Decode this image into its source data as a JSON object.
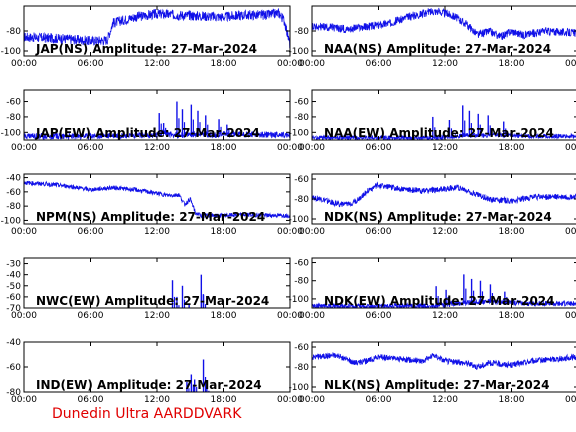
{
  "footer": "Dunedin Ultra AARDDVARK",
  "colors": {
    "trace": "#1010e8",
    "axis": "#000000",
    "footer": "#e00000"
  },
  "x_ticks": [
    "00:00",
    "06:00",
    "12:00",
    "18:00",
    "00:00"
  ],
  "chart_data": [
    {
      "type": "line",
      "title": "JAP(NS) Amplitude: 27-Mar-2024",
      "xlim": [
        0,
        24
      ],
      "ylim": [
        -105,
        -55
      ],
      "yticks": [
        "-80",
        "-100"
      ],
      "ytick_values": [
        -80,
        -100
      ],
      "x": [
        0,
        2,
        4,
        6,
        7.5,
        8,
        10,
        12,
        14,
        16,
        18,
        20,
        22,
        23,
        23.5,
        24
      ],
      "y": [
        -86,
        -87,
        -88,
        -90,
        -89,
        -72,
        -66,
        -63,
        -64,
        -65,
        -66,
        -64,
        -64,
        -62,
        -70,
        -94
      ],
      "noise": 5
    },
    {
      "type": "line",
      "title": "NAA(NS) Amplitude: 27-Mar-2024",
      "xlim": [
        0,
        24
      ],
      "ylim": [
        -105,
        -55
      ],
      "yticks": [
        "-80",
        "-100"
      ],
      "ytick_values": [
        -80,
        -100
      ],
      "x": [
        0,
        3,
        5,
        7,
        9,
        11,
        12,
        13,
        14,
        15,
        16,
        17,
        18,
        19,
        21,
        24
      ],
      "y": [
        -75,
        -78,
        -76,
        -72,
        -65,
        -60,
        -62,
        -66,
        -74,
        -84,
        -80,
        -86,
        -80,
        -84,
        -80,
        -82
      ],
      "noise": 4
    },
    {
      "type": "line",
      "title": "JAP(EW) Amplitude: 27-Mar-2024",
      "xlim": [
        0,
        24
      ],
      "ylim": [
        -110,
        -45
      ],
      "yticks": [
        "-60",
        "-80",
        "-100"
      ],
      "ytick_values": [
        -60,
        -80,
        -100
      ],
      "x": [
        0,
        6,
        10,
        12,
        12.5,
        13,
        14,
        15,
        16,
        17,
        18,
        20,
        24
      ],
      "y": [
        -105,
        -105,
        -104,
        -104,
        -100,
        -102,
        -104,
        -103,
        -101,
        -104,
        -102,
        -103,
        -103
      ],
      "noise": 4,
      "spikes": [
        [
          12.2,
          -75
        ],
        [
          12.6,
          -88
        ],
        [
          13.8,
          -60
        ],
        [
          14.3,
          -70
        ],
        [
          15.1,
          -64
        ],
        [
          15.7,
          -72
        ],
        [
          16.4,
          -78
        ],
        [
          17.6,
          -83
        ],
        [
          18.3,
          -90
        ]
      ]
    },
    {
      "type": "line",
      "title": "NAA(EW) Amplitude: 27-Mar-2024",
      "xlim": [
        0,
        24
      ],
      "ylim": [
        -110,
        -45
      ],
      "yticks": [
        "-60",
        "-80",
        "-100"
      ],
      "ytick_values": [
        -60,
        -80,
        -100
      ],
      "x": [
        0,
        6,
        11,
        12,
        14,
        16,
        18,
        20,
        24
      ],
      "y": [
        -107,
        -107,
        -107,
        -106,
        -104,
        -104,
        -104,
        -105,
        -105
      ],
      "noise": 3,
      "spikes": [
        [
          10.9,
          -80
        ],
        [
          12.4,
          -84
        ],
        [
          13.6,
          -65
        ],
        [
          14.2,
          -72
        ],
        [
          15.0,
          -76
        ],
        [
          15.9,
          -78
        ],
        [
          17.3,
          -86
        ]
      ]
    },
    {
      "type": "line",
      "title": "NPM(NS) Amplitude: 27-Mar-2024",
      "xlim": [
        0,
        24
      ],
      "ylim": [
        -105,
        -35
      ],
      "yticks": [
        "-40",
        "-60",
        "-80",
        "-100"
      ],
      "ytick_values": [
        -40,
        -60,
        -80,
        -100
      ],
      "x": [
        0,
        2,
        4,
        6,
        8,
        10,
        12,
        13,
        14,
        14.5,
        15,
        15.5,
        16,
        18,
        20,
        22,
        24
      ],
      "y": [
        -47,
        -49,
        -52,
        -57,
        -54,
        -57,
        -62,
        -65,
        -64,
        -78,
        -70,
        -90,
        -93,
        -93,
        -92,
        -93,
        -93
      ],
      "noise": 3
    },
    {
      "type": "line",
      "title": "NDK(NS) Amplitude: 27-Mar-2024",
      "xlim": [
        0,
        24
      ],
      "ylim": [
        -105,
        -55
      ],
      "yticks": [
        "-60",
        "-80",
        "-100"
      ],
      "ytick_values": [
        -60,
        -80,
        -100
      ],
      "x": [
        0,
        2,
        3,
        4,
        5,
        6,
        8,
        10,
        12,
        13,
        14,
        16,
        18,
        20,
        22,
        24
      ],
      "y": [
        -78,
        -84,
        -86,
        -82,
        -72,
        -66,
        -70,
        -72,
        -70,
        -68,
        -72,
        -80,
        -82,
        -78,
        -78,
        -78
      ],
      "noise": 3
    },
    {
      "type": "line",
      "title": "NWC(EW) Amplitude: 27-Mar-2024",
      "xlim": [
        0,
        24
      ],
      "ylim": [
        -70,
        -25
      ],
      "yticks": [
        "-30",
        "-40",
        "-50",
        "-60",
        "-70"
      ],
      "ytick_values": [
        -30,
        -40,
        -50,
        -60,
        -70
      ],
      "x": [
        0,
        24
      ],
      "y": [
        -75,
        -75
      ],
      "noise": 0,
      "spikes": [
        [
          13.4,
          -45
        ],
        [
          13.8,
          -60
        ],
        [
          14.3,
          -50
        ],
        [
          14.9,
          -67
        ],
        [
          16.0,
          -40
        ],
        [
          16.2,
          -58
        ]
      ]
    },
    {
      "type": "line",
      "title": "NDK(EW) Amplitude: 27-Mar-2024",
      "xlim": [
        0,
        24
      ],
      "ylim": [
        -110,
        -55
      ],
      "yticks": [
        "-60",
        "-80",
        "-100"
      ],
      "ytick_values": [
        -60,
        -80,
        -100
      ],
      "x": [
        0,
        6,
        11,
        12,
        14,
        16,
        18,
        20,
        24
      ],
      "y": [
        -108,
        -108,
        -108,
        -106,
        -104,
        -103,
        -104,
        -105,
        -105
      ],
      "noise": 3,
      "spikes": [
        [
          11.2,
          -86
        ],
        [
          12.1,
          -90
        ],
        [
          13.7,
          -73
        ],
        [
          14.4,
          -78
        ],
        [
          15.2,
          -80
        ],
        [
          16.1,
          -84
        ],
        [
          17.4,
          -92
        ]
      ]
    },
    {
      "type": "line",
      "title": "IND(EW) Amplitude: 27-Mar-2024",
      "xlim": [
        0,
        24
      ],
      "ylim": [
        -80,
        -40
      ],
      "yticks": [
        "-40",
        "-60",
        "-80"
      ],
      "ytick_values": [
        -40,
        -60,
        -80
      ],
      "x": [
        0,
        24
      ],
      "y": [
        -82,
        -82
      ],
      "noise": 0,
      "spikes": [
        [
          14.7,
          -72
        ],
        [
          15.1,
          -66
        ],
        [
          15.4,
          -70
        ],
        [
          16.2,
          -54
        ],
        [
          16.5,
          -76
        ]
      ]
    },
    {
      "type": "line",
      "title": "NLK(NS) Amplitude: 27-Mar-2024",
      "xlim": [
        0,
        24
      ],
      "ylim": [
        -105,
        -55
      ],
      "yticks": [
        "-60",
        "-80",
        "-100"
      ],
      "ytick_values": [
        -60,
        -80,
        -100
      ],
      "x": [
        0,
        2,
        3,
        4,
        5,
        6,
        8,
        10,
        11,
        12,
        14,
        15,
        16,
        18,
        20,
        22,
        24
      ],
      "y": [
        -70,
        -68,
        -72,
        -76,
        -74,
        -70,
        -72,
        -74,
        -68,
        -74,
        -76,
        -80,
        -76,
        -78,
        -74,
        -72,
        -70
      ],
      "noise": 3
    }
  ]
}
